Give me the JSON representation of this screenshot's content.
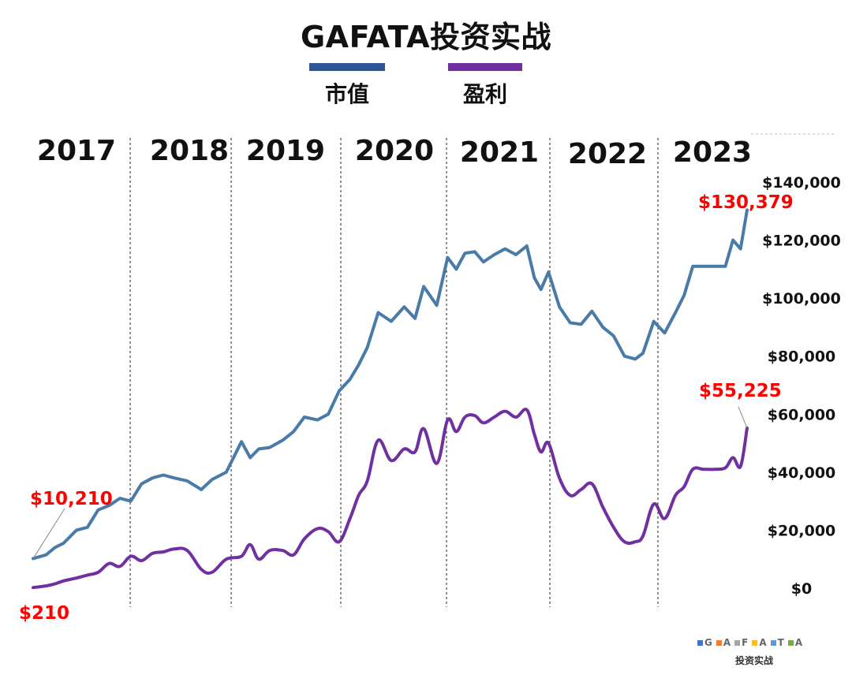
{
  "chart_data": {
    "type": "line",
    "title": "GAFATA投资实战",
    "years": [
      "2017",
      "2018",
      "2019",
      "2020",
      "2021",
      "2022",
      "2023"
    ],
    "ylim": [
      0,
      140000
    ],
    "yticks": [
      0,
      20000,
      40000,
      60000,
      80000,
      100000,
      120000,
      140000
    ],
    "ytick_labels": [
      "$0",
      "$20,000",
      "$40,000",
      "$60,000",
      "$80,000",
      "$100,000",
      "$120,000",
      "$140,000"
    ],
    "x_range": [
      2017.0,
      2023.58
    ],
    "series": [
      {
        "name": "市值",
        "color": "#4A7BA8",
        "x": [
          2017.0,
          2017.12,
          2017.2,
          2017.28,
          2017.4,
          2017.5,
          2017.6,
          2017.7,
          2017.8,
          2017.9,
          2018.0,
          2018.1,
          2018.2,
          2018.3,
          2018.42,
          2018.55,
          2018.65,
          2018.78,
          2018.92,
          2019.0,
          2019.08,
          2019.18,
          2019.3,
          2019.4,
          2019.5,
          2019.62,
          2019.72,
          2019.82,
          2019.92,
          2020.0,
          2020.08,
          2020.18,
          2020.3,
          2020.42,
          2020.52,
          2020.6,
          2020.72,
          2020.82,
          2020.9,
          2020.98,
          2021.07,
          2021.15,
          2021.25,
          2021.35,
          2021.45,
          2021.55,
          2021.62,
          2021.68,
          2021.75,
          2021.85,
          2021.95,
          2022.05,
          2022.15,
          2022.25,
          2022.35,
          2022.45,
          2022.55,
          2022.62,
          2022.72,
          2022.82,
          2022.92,
          2023.0,
          2023.08,
          2023.18,
          2023.28,
          2023.38,
          2023.45,
          2023.52,
          2023.58
        ],
        "values": [
          10210,
          11500,
          14000,
          15500,
          20000,
          21000,
          27000,
          28500,
          31000,
          30000,
          36000,
          38000,
          39000,
          38000,
          37000,
          34000,
          37500,
          40000,
          50500,
          45000,
          48000,
          48500,
          51000,
          54000,
          59000,
          58000,
          60000,
          68000,
          72000,
          77000,
          83000,
          95000,
          92000,
          97000,
          93000,
          104000,
          97500,
          114000,
          110000,
          115500,
          116000,
          112500,
          115000,
          117000,
          115000,
          118000,
          107000,
          103000,
          109000,
          97000,
          91500,
          91000,
          95500,
          90000,
          87000,
          80000,
          79000,
          81000,
          92000,
          88000,
          95000,
          101000,
          111000,
          111000,
          111000,
          111000,
          120000,
          117000,
          130379
        ]
      },
      {
        "name": "盈利",
        "color": "#7030A0",
        "x": [
          2017.0,
          2017.12,
          2017.2,
          2017.28,
          2017.4,
          2017.5,
          2017.6,
          2017.7,
          2017.8,
          2017.9,
          2018.0,
          2018.1,
          2018.2,
          2018.3,
          2018.42,
          2018.55,
          2018.65,
          2018.78,
          2018.92,
          2019.0,
          2019.08,
          2019.18,
          2019.3,
          2019.4,
          2019.5,
          2019.62,
          2019.72,
          2019.82,
          2019.92,
          2020.0,
          2020.08,
          2020.18,
          2020.3,
          2020.42,
          2020.52,
          2020.6,
          2020.72,
          2020.82,
          2020.9,
          2020.98,
          2021.07,
          2021.15,
          2021.25,
          2021.35,
          2021.45,
          2021.55,
          2021.62,
          2021.68,
          2021.75,
          2021.85,
          2021.95,
          2022.05,
          2022.15,
          2022.25,
          2022.35,
          2022.45,
          2022.55,
          2022.62,
          2022.72,
          2022.82,
          2022.92,
          2023.0,
          2023.08,
          2023.18,
          2023.28,
          2023.38,
          2023.45,
          2023.52,
          2023.58
        ],
        "values": [
          210,
          800,
          1500,
          2500,
          3500,
          4500,
          5500,
          8500,
          7500,
          11000,
          9500,
          12000,
          12500,
          13500,
          13000,
          6500,
          5500,
          10000,
          11000,
          15000,
          10000,
          13000,
          13000,
          11500,
          17000,
          20500,
          19500,
          16000,
          24000,
          32000,
          37000,
          51000,
          44000,
          48000,
          47000,
          55000,
          43000,
          58000,
          54000,
          59000,
          59500,
          57000,
          59000,
          61000,
          59000,
          61500,
          53000,
          47000,
          50000,
          38000,
          32000,
          34000,
          36000,
          28000,
          21000,
          16000,
          16000,
          18000,
          29000,
          24000,
          32000,
          35000,
          41000,
          41000,
          41000,
          41500,
          45000,
          42000,
          55225
        ]
      }
    ],
    "annotations": [
      {
        "text": "$10,210",
        "color": "#FF0000"
      },
      {
        "text": "$210",
        "color": "#FF0000"
      },
      {
        "text": "$130,379",
        "color": "#FF0000"
      },
      {
        "text": "$55,225",
        "color": "#FF0000"
      }
    ]
  },
  "footer": {
    "letters": [
      {
        "char": "G",
        "color": "#4472C4"
      },
      {
        "char": "A",
        "color": "#ED7D31"
      },
      {
        "char": "F",
        "color": "#A5A5A5"
      },
      {
        "char": "A",
        "color": "#FFC000"
      },
      {
        "char": "T",
        "color": "#5B9BD5"
      },
      {
        "char": "A",
        "color": "#70AD47"
      }
    ],
    "subtitle": "投资实战"
  }
}
